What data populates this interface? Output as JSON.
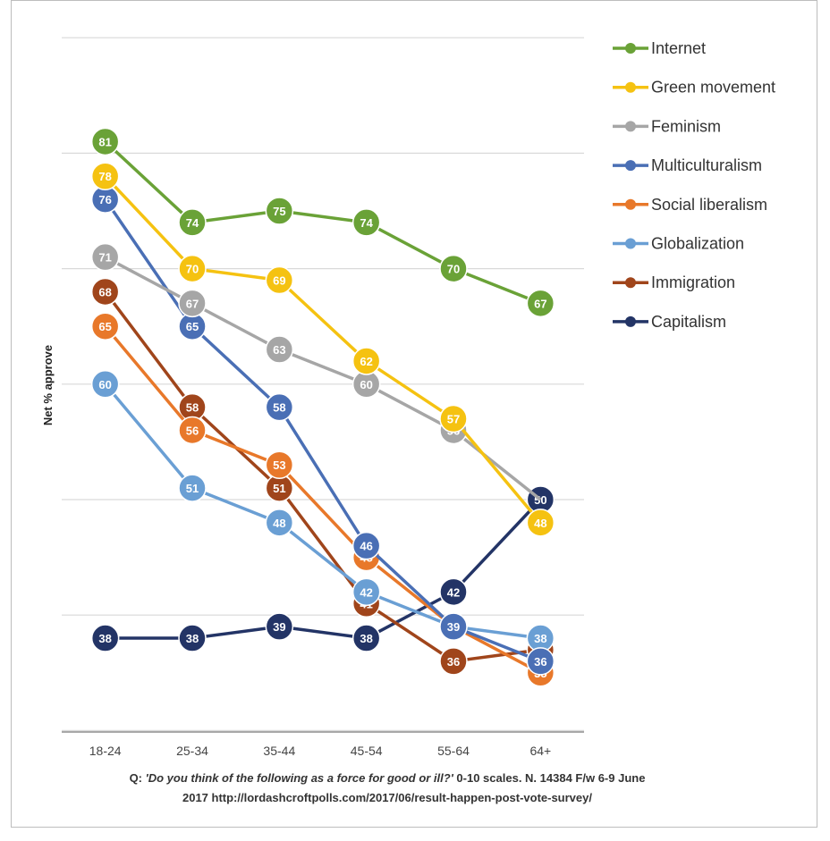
{
  "chart_data": {
    "type": "line",
    "title": "",
    "xlabel": "",
    "ylabel": "Net % approve",
    "categories": [
      "18-24",
      "25-34",
      "35-44",
      "45-54",
      "55-64",
      "64+"
    ],
    "ylim": [
      20,
      90
    ],
    "gridlines": [
      30,
      40,
      50,
      60,
      70,
      80,
      90
    ],
    "series": [
      {
        "name": "Internet",
        "color": "#6aa237",
        "values": [
          81,
          74,
          75,
          74,
          70,
          67
        ]
      },
      {
        "name": "Green movement",
        "color": "#f5c211",
        "values": [
          78,
          70,
          69,
          62,
          57,
          48
        ]
      },
      {
        "name": "Feminism",
        "color": "#a6a6a6",
        "values": [
          71,
          67,
          63,
          60,
          56,
          50
        ]
      },
      {
        "name": "Multiculturalism",
        "color": "#4a6fb5",
        "values": [
          76,
          65,
          58,
          46,
          39,
          36
        ]
      },
      {
        "name": "Social liberalism",
        "color": "#e8782a",
        "values": [
          65,
          56,
          53,
          45,
          39,
          35
        ]
      },
      {
        "name": "Globalization",
        "color": "#6a9fd4",
        "values": [
          60,
          51,
          48,
          42,
          39,
          38
        ]
      },
      {
        "name": "Immigration",
        "color": "#a0451b",
        "values": [
          68,
          58,
          51,
          41,
          36,
          37
        ]
      },
      {
        "name": "Capitalism",
        "color": "#233466",
        "values": [
          38,
          38,
          39,
          38,
          42,
          50
        ]
      }
    ],
    "hidden_labels": {
      "Feminism": [
        5
      ]
    }
  },
  "footnote": {
    "q_prefix": "Q: ",
    "question": "'Do you think of the following as a force for good or ill?'",
    "rest": " 0-10 scales.  N. 14384 F/w 6-9 June",
    "line2": "2017 http://lordashcroftpolls.com/2017/06/result-happen-post-vote-survey/"
  }
}
